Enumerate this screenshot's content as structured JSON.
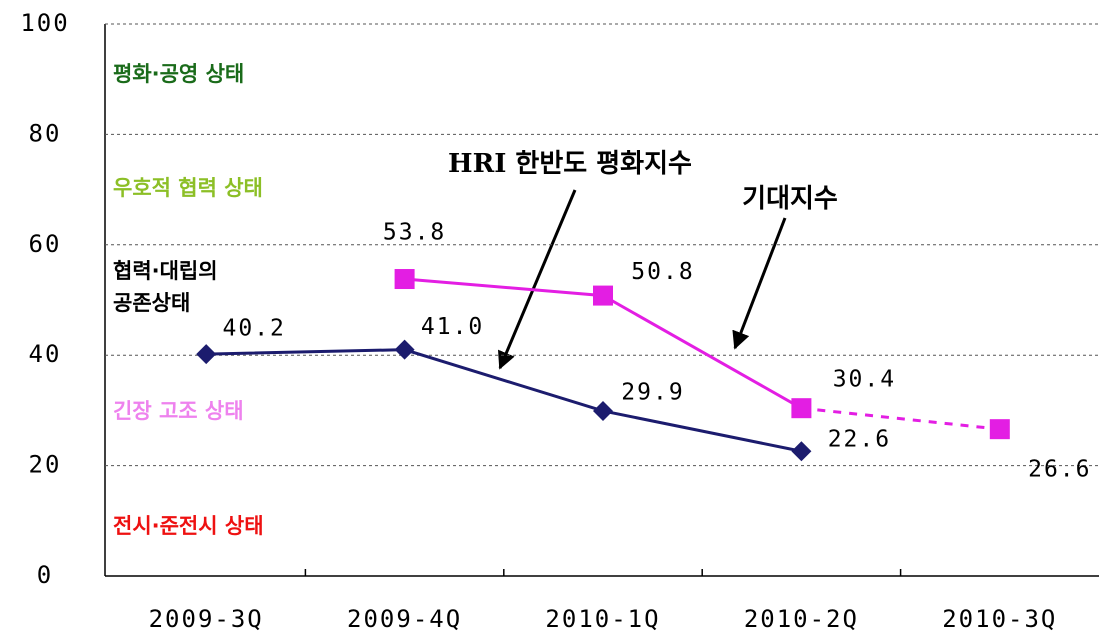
{
  "chart_data": {
    "type": "line",
    "categories": [
      "2009-3Q",
      "2009-4Q",
      "2010-1Q",
      "2010-2Q",
      "2010-3Q"
    ],
    "series": [
      {
        "name": "HRI 한반도 평화지수",
        "color": "#1c1c6e",
        "marker": "diamond",
        "values": [
          40.2,
          41.0,
          29.9,
          22.6,
          null
        ],
        "value_labels": [
          "40.2",
          "41.0",
          "29.9",
          "22.6",
          null
        ]
      },
      {
        "name": "기대지수",
        "color": "#e31ee3",
        "marker": "square",
        "dashed_from": 3,
        "values": [
          null,
          53.8,
          50.8,
          30.4,
          26.6
        ],
        "value_labels": [
          null,
          "53.8",
          "50.8",
          "30.4",
          "26.6"
        ]
      }
    ],
    "zones": [
      {
        "lines": [
          "평화·공영 상태"
        ],
        "color": "#1a6b1a"
      },
      {
        "lines": [
          "우호적 협력 상태"
        ],
        "color": "#8cbf26"
      },
      {
        "lines": [
          "협력·대립의",
          "공존상태"
        ],
        "color": "#000000"
      },
      {
        "lines": [
          "긴장 고조 상태"
        ],
        "color": "#ee82ee"
      },
      {
        "lines": [
          "전시·준전시 상태"
        ],
        "color": "#ee1111"
      }
    ],
    "ylim": [
      0,
      100
    ],
    "yticks": [
      0,
      20,
      40,
      60,
      80,
      100
    ],
    "grid": true
  }
}
